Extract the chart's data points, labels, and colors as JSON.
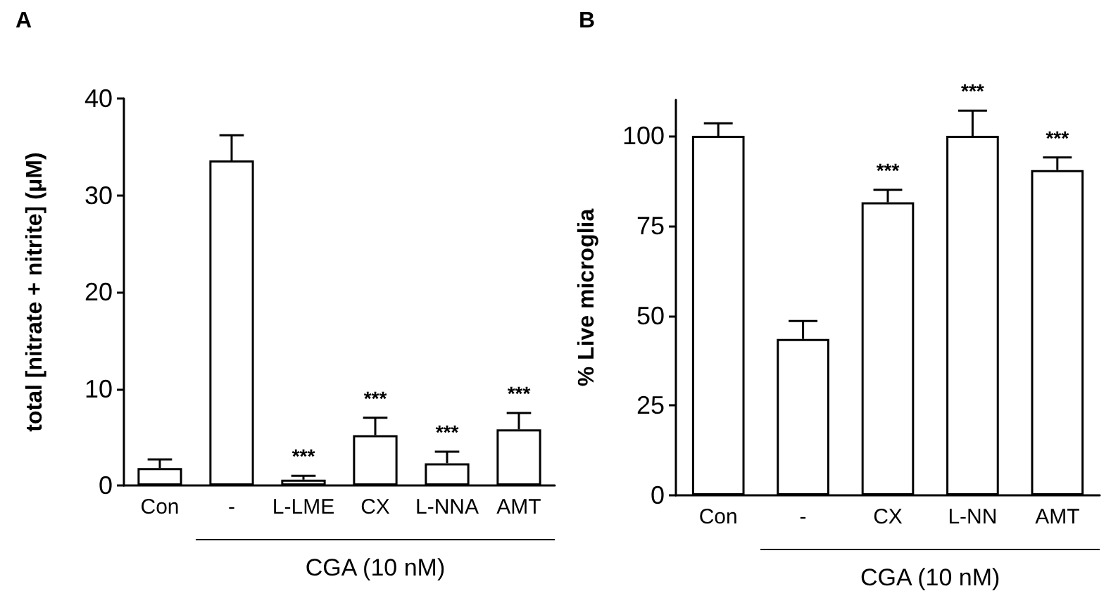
{
  "chart_data": [
    {
      "type": "bar",
      "title": "A",
      "xlabel": "CGA (10 nM)",
      "ylabel": "total [nitrate + nitrite] (μM)",
      "categories": [
        "Con",
        "-",
        "L-LME",
        "CX",
        "L-NNA",
        "AMT"
      ],
      "values": [
        1.8,
        33.6,
        0.6,
        5.2,
        2.3,
        5.8
      ],
      "color": "#ffffff",
      "errors": [
        [
          1.8,
          2.7
        ],
        [
          33.6,
          36.2
        ],
        [
          0.6,
          1.0
        ],
        [
          5.2,
          7.0
        ],
        [
          2.3,
          3.5
        ],
        [
          5.8,
          7.5
        ]
      ],
      "ylim": [
        0,
        40
      ],
      "yticks": [
        0,
        10,
        20,
        30,
        40
      ],
      "annotations": [
        {
          "text": "***",
          "x": "L-LME",
          "y": 1.0
        },
        {
          "text": "***",
          "x": "CX",
          "y": 7.0
        },
        {
          "text": "***",
          "x": "L-NNA",
          "y": 3.5
        },
        {
          "text": "***",
          "x": "AMT",
          "y": 7.5
        }
      ]
    },
    {
      "type": "bar",
      "title": "B",
      "xlabel": "CGA (10 nM)",
      "ylabel": "% Live microglia",
      "categories": [
        "Con",
        "-",
        "CX",
        "L-NN",
        "AMT"
      ],
      "values": [
        100,
        43.5,
        81.5,
        100,
        90.5
      ],
      "color": "#ffffff",
      "errors": [
        [
          100,
          103.5
        ],
        [
          43.5,
          48.5
        ],
        [
          81.5,
          85
        ],
        [
          100,
          107
        ],
        [
          90.5,
          94
        ]
      ],
      "ylim": [
        0,
        110
      ],
      "yticks": [
        0,
        25,
        50,
        75,
        100
      ],
      "annotations": [
        {
          "text": "***",
          "x": "CX",
          "y": 85
        },
        {
          "text": "***",
          "x": "L-NN",
          "y": 107
        },
        {
          "text": "***",
          "x": "AMT",
          "y": 94
        }
      ]
    }
  ]
}
